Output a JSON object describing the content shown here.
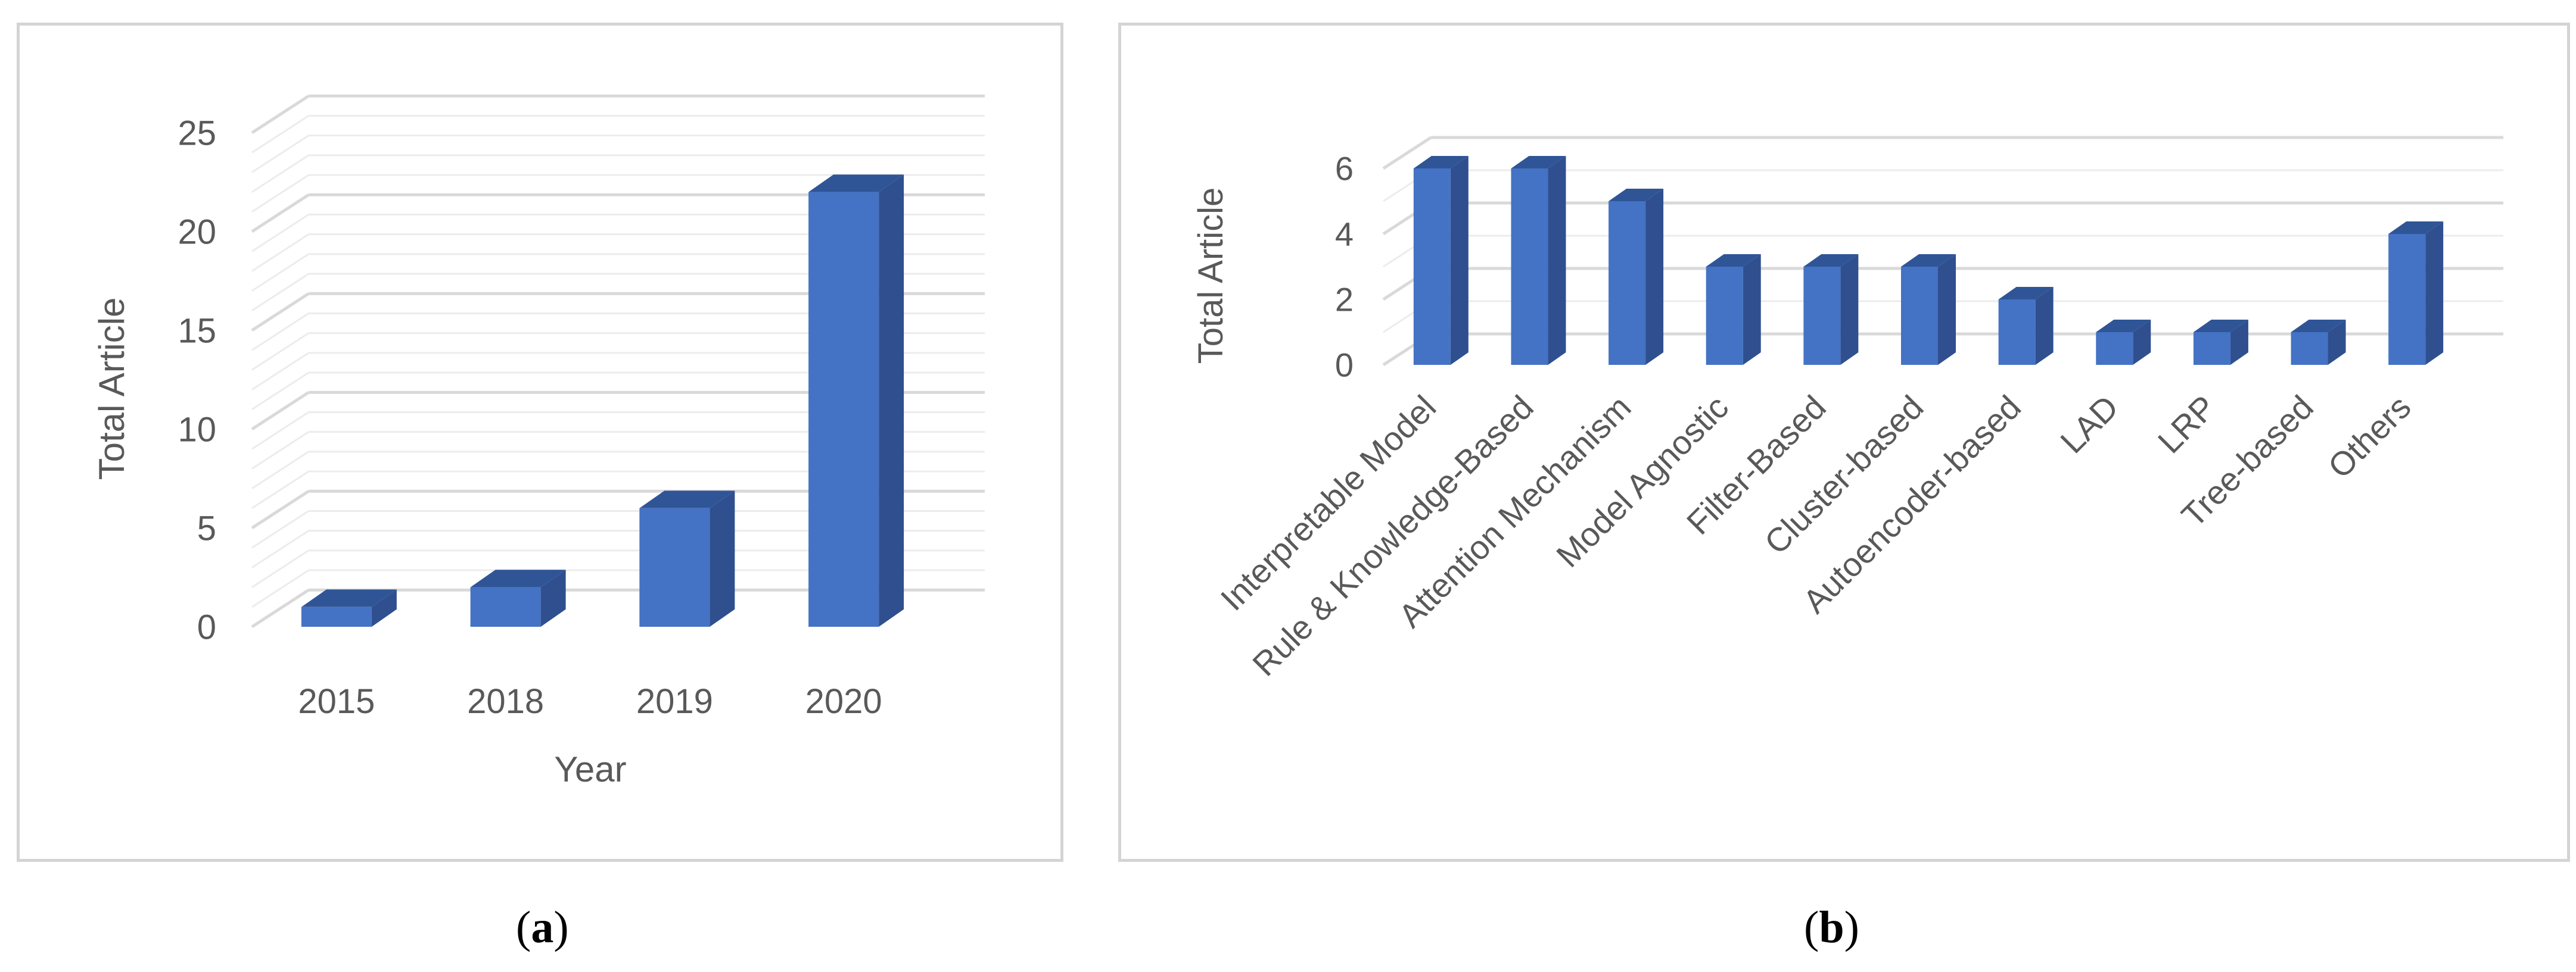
{
  "captions": {
    "a": "a",
    "b": "b"
  },
  "colors": {
    "bar_front": "#4472c4",
    "bar_top": "#2f5597",
    "bar_side": "#2f4f8f",
    "grid": "#d9d9d9",
    "text": "#595959"
  },
  "chart_data": [
    {
      "type": "bar",
      "categories": [
        "2015",
        "2018",
        "2019",
        "2020"
      ],
      "values": [
        1,
        2,
        6,
        22
      ],
      "title": "",
      "xlabel": "Year",
      "ylabel": "Total Article",
      "ylim": [
        0,
        25
      ],
      "yticks": [
        "0",
        "5",
        "10",
        "15",
        "20",
        "25"
      ],
      "grid": true,
      "legend": "none",
      "style": "3d-column"
    },
    {
      "type": "bar",
      "categories": [
        "Interpretable Model",
        "Rule & Knowledge-Based",
        "Attention Mechanism",
        "Model Agnostic",
        "Filter-Based",
        "Cluster-based",
        "Autoencoder-based",
        "LAD",
        "LRP",
        "Tree-based",
        "Others"
      ],
      "values": [
        6,
        6,
        5,
        3,
        3,
        3,
        2,
        1,
        1,
        1,
        4
      ],
      "title": "",
      "xlabel": "",
      "ylabel": "Total Article",
      "ylim": [
        0,
        6
      ],
      "yticks": [
        "0",
        "2",
        "4",
        "6"
      ],
      "grid": true,
      "legend": "none",
      "style": "3d-column"
    }
  ]
}
